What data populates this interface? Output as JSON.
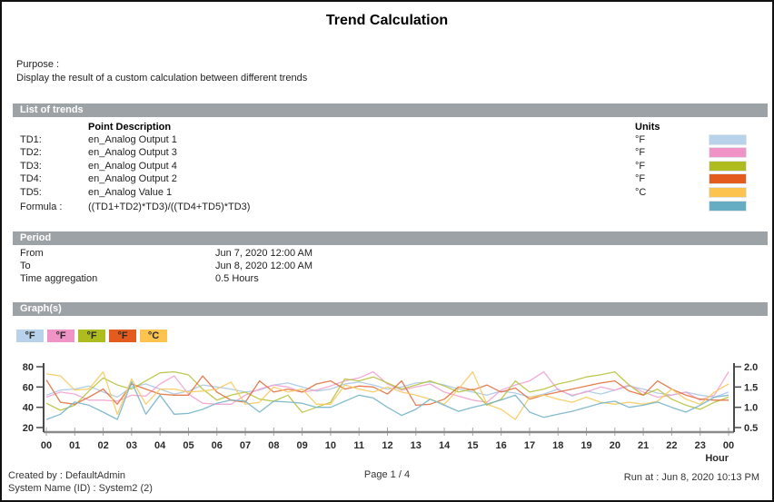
{
  "title": "Trend Calculation",
  "purpose": {
    "label": "Purpose :",
    "text": "Display the result of a custom calculation between different trends"
  },
  "list_of_trends": {
    "header": "List of trends",
    "columns": {
      "point_description": "Point Description",
      "units": "Units"
    },
    "rows": [
      {
        "id": "TD1:",
        "description": "en_Analog Output 1",
        "units": "°F",
        "color": "#b7d2ea"
      },
      {
        "id": "TD2:",
        "description": "en_Analog Output 3",
        "units": "°F",
        "color": "#f093c7"
      },
      {
        "id": "TD3:",
        "description": "en_Analog Output 4",
        "units": "°F",
        "color": "#aebc20"
      },
      {
        "id": "TD4:",
        "description": "en_Analog Output 2",
        "units": "°F",
        "color": "#e45c1d"
      },
      {
        "id": "TD5:",
        "description": "en_Analog Value 1",
        "units": "°C",
        "color": "#fcc44f"
      }
    ],
    "formula": {
      "label": "Formula :",
      "text": "((TD1+TD2)*TD3)/((TD4+TD5)*TD3)",
      "color": "#66adc3"
    }
  },
  "period": {
    "header": "Period",
    "rows": [
      {
        "label": "From",
        "value": "Jun 7, 2020 12:00 AM"
      },
      {
        "label": "To",
        "value": "Jun 8, 2020 12:00 AM"
      },
      {
        "label": "Time aggregation",
        "value": "0.5 Hours"
      }
    ]
  },
  "graphs": {
    "header": "Graph(s)",
    "legend": [
      {
        "label": "°F",
        "color": "#b7d2ea"
      },
      {
        "label": "°F",
        "color": "#f093c7"
      },
      {
        "label": "°F",
        "color": "#aebc20"
      },
      {
        "label": "°F",
        "color": "#e45c1d"
      },
      {
        "label": "°C",
        "color": "#fcc44f"
      }
    ]
  },
  "chart_data": {
    "type": "line",
    "xlabel": "Hour",
    "x_range": [
      0,
      24
    ],
    "x_step": 0.5,
    "x_ticks": [
      "00",
      "01",
      "02",
      "03",
      "04",
      "05",
      "06",
      "07",
      "08",
      "09",
      "10",
      "11",
      "12",
      "13",
      "14",
      "15",
      "16",
      "17",
      "18",
      "19",
      "20",
      "21",
      "22",
      "23",
      "00"
    ],
    "left_axis": {
      "ticks": [
        "20",
        "40",
        "60",
        "80"
      ],
      "range": [
        20,
        80
      ]
    },
    "right_axis": {
      "ticks": [
        "0.5",
        "1.0",
        "1.5",
        "2.0"
      ],
      "range": [
        0.5,
        2.0
      ]
    },
    "grid": false,
    "legend_position": "top-left",
    "series": [
      {
        "name": "TD1 en_Analog Output 1",
        "unit": "°F",
        "axis": "left",
        "color": "#a9c9e6",
        "values": [
          52,
          57,
          58,
          61,
          55,
          50,
          60,
          63,
          58,
          53,
          56,
          62,
          60,
          58,
          55,
          57,
          62,
          64,
          60,
          56,
          58,
          63,
          65,
          62,
          58,
          60,
          64,
          65,
          62,
          58,
          55,
          52,
          56,
          54,
          50,
          53,
          58,
          51,
          56,
          53,
          57,
          61,
          58,
          54,
          52,
          55,
          52,
          50,
          55
        ]
      },
      {
        "name": "TD2 en_Analog Output 3",
        "unit": "°F",
        "axis": "left",
        "color": "#f2a2d0",
        "values": [
          50,
          55,
          53,
          47,
          47,
          46,
          52,
          51,
          63,
          71,
          53,
          44,
          43,
          43,
          52,
          58,
          62,
          60,
          55,
          57,
          61,
          66,
          69,
          75,
          63,
          57,
          60,
          63,
          55,
          51,
          47,
          45,
          57,
          62,
          66,
          75,
          57,
          52,
          55,
          60,
          57,
          62,
          55,
          50,
          52,
          55,
          47,
          52,
          75
        ]
      },
      {
        "name": "TD3 en_Analog Output 4",
        "unit": "°F",
        "axis": "left",
        "color": "#b8c23e",
        "values": [
          44,
          37,
          42,
          56,
          69,
          62,
          58,
          66,
          74,
          75,
          72,
          58,
          47,
          52,
          55,
          48,
          46,
          52,
          35,
          40,
          45,
          68,
          66,
          70,
          64,
          58,
          62,
          66,
          61,
          55,
          58,
          42,
          48,
          66,
          55,
          58,
          63,
          66,
          70,
          72,
          75,
          62,
          52,
          58,
          48,
          42,
          38,
          45,
          50
        ]
      },
      {
        "name": "TD4 en_Analog Output 2",
        "unit": "°F",
        "axis": "left",
        "color": "#e2703f",
        "values": [
          67,
          45,
          43,
          50,
          58,
          43,
          63,
          58,
          53,
          52,
          52,
          71,
          55,
          47,
          45,
          66,
          55,
          58,
          55,
          63,
          66,
          58,
          61,
          60,
          53,
          66,
          42,
          43,
          48,
          60,
          57,
          62,
          55,
          59,
          48,
          52,
          55,
          58,
          61,
          64,
          66,
          56,
          52,
          66,
          58,
          52,
          48,
          47,
          47
        ]
      },
      {
        "name": "TD5 en_Analog Value 1",
        "unit": "°C",
        "axis": "left",
        "color": "#f8ca5e",
        "values": [
          73,
          71,
          57,
          58,
          75,
          33,
          68,
          43,
          58,
          58,
          55,
          56,
          58,
          65,
          43,
          45,
          60,
          55,
          58,
          43,
          43,
          62,
          58,
          55,
          60,
          55,
          52,
          48,
          43,
          58,
          75,
          43,
          38,
          28,
          50,
          52,
          48,
          45,
          50,
          45,
          43,
          45,
          43,
          46,
          58,
          48,
          43,
          55,
          63
        ]
      },
      {
        "name": "Formula ((TD1+TD2)*TD3)/((TD4+TD5)*TD3)",
        "unit": "",
        "axis": "right",
        "color": "#76b4c9",
        "values": [
          0.7,
          0.83,
          1.13,
          1.05,
          0.88,
          0.7,
          1.63,
          0.83,
          1.3,
          0.83,
          0.85,
          0.95,
          1.1,
          1.18,
          1.15,
          0.88,
          1.15,
          1.13,
          1.1,
          1.0,
          1.0,
          1.15,
          1.3,
          1.23,
          1.0,
          0.8,
          0.95,
          1.2,
          1.05,
          0.9,
          1.0,
          1.08,
          1.18,
          1.3,
          0.88,
          0.75,
          0.83,
          0.9,
          1.0,
          1.1,
          1.15,
          1.0,
          1.05,
          1.13,
          1.0,
          0.88,
          1.05,
          1.25,
          1.3
        ]
      }
    ]
  },
  "footer": {
    "created_by": "Created by : DefaultAdmin",
    "system_name": "System Name (ID) : System2 (2)",
    "page": "Page  1 / 4",
    "run_at": "Run at : Jun 8, 2020 10:13 PM"
  }
}
